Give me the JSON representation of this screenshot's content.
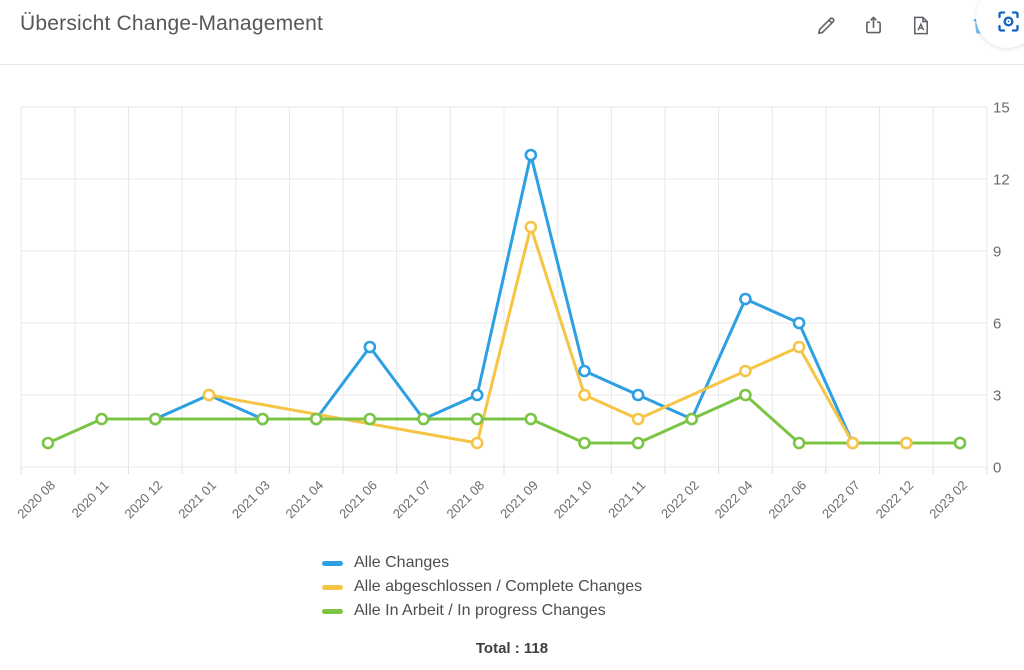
{
  "header": {
    "title": "Übersicht Change-Management",
    "tools": {
      "edit": "pencil-icon",
      "share": "share-icon",
      "export_pdf": "pdf-icon",
      "delete": "trash-icon",
      "screenshot": "screenshot-frame-icon"
    }
  },
  "chart_data": {
    "type": "line",
    "title": "Übersicht Change-Management",
    "categories": [
      "2020 08",
      "2020 11",
      "2020 12",
      "2021 01",
      "2021 03",
      "2021 04",
      "2021 06",
      "2021 07",
      "2021 08",
      "2021 09",
      "2021 10",
      "2021 11",
      "2022 02",
      "2022 04",
      "2022 06",
      "2022 07",
      "2022 12",
      "2023 02"
    ],
    "series": [
      {
        "name": "Alle Changes",
        "color": "#2D9FE3",
        "values": [
          null,
          null,
          2,
          3,
          2,
          2,
          5,
          2,
          3,
          13,
          4,
          3,
          2,
          7,
          6,
          1,
          1,
          1
        ]
      },
      {
        "name": "Alle abgeschlossen / Complete Changes",
        "color": "#F6C546",
        "values": [
          null,
          null,
          null,
          3,
          null,
          null,
          null,
          null,
          1,
          10,
          3,
          2,
          null,
          4,
          5,
          1,
          1,
          null
        ]
      },
      {
        "name": "Alle In Arbeit / In progress Changes",
        "color": "#7CC544",
        "values": [
          1,
          2,
          2,
          null,
          2,
          2,
          2,
          2,
          2,
          2,
          1,
          1,
          2,
          3,
          1,
          null,
          null,
          1
        ]
      }
    ],
    "ylim": [
      0,
      15
    ],
    "yticks": [
      0,
      3,
      6,
      9,
      12,
      15
    ],
    "y_axis_side": "right",
    "grid": true,
    "legend_position": "bottom-left",
    "marker": "hollow-circle",
    "colors": {
      "grid": "#e8e8e8",
      "axis_label": "#6b6b6b"
    }
  },
  "footer": {
    "total": "Total : 118"
  }
}
